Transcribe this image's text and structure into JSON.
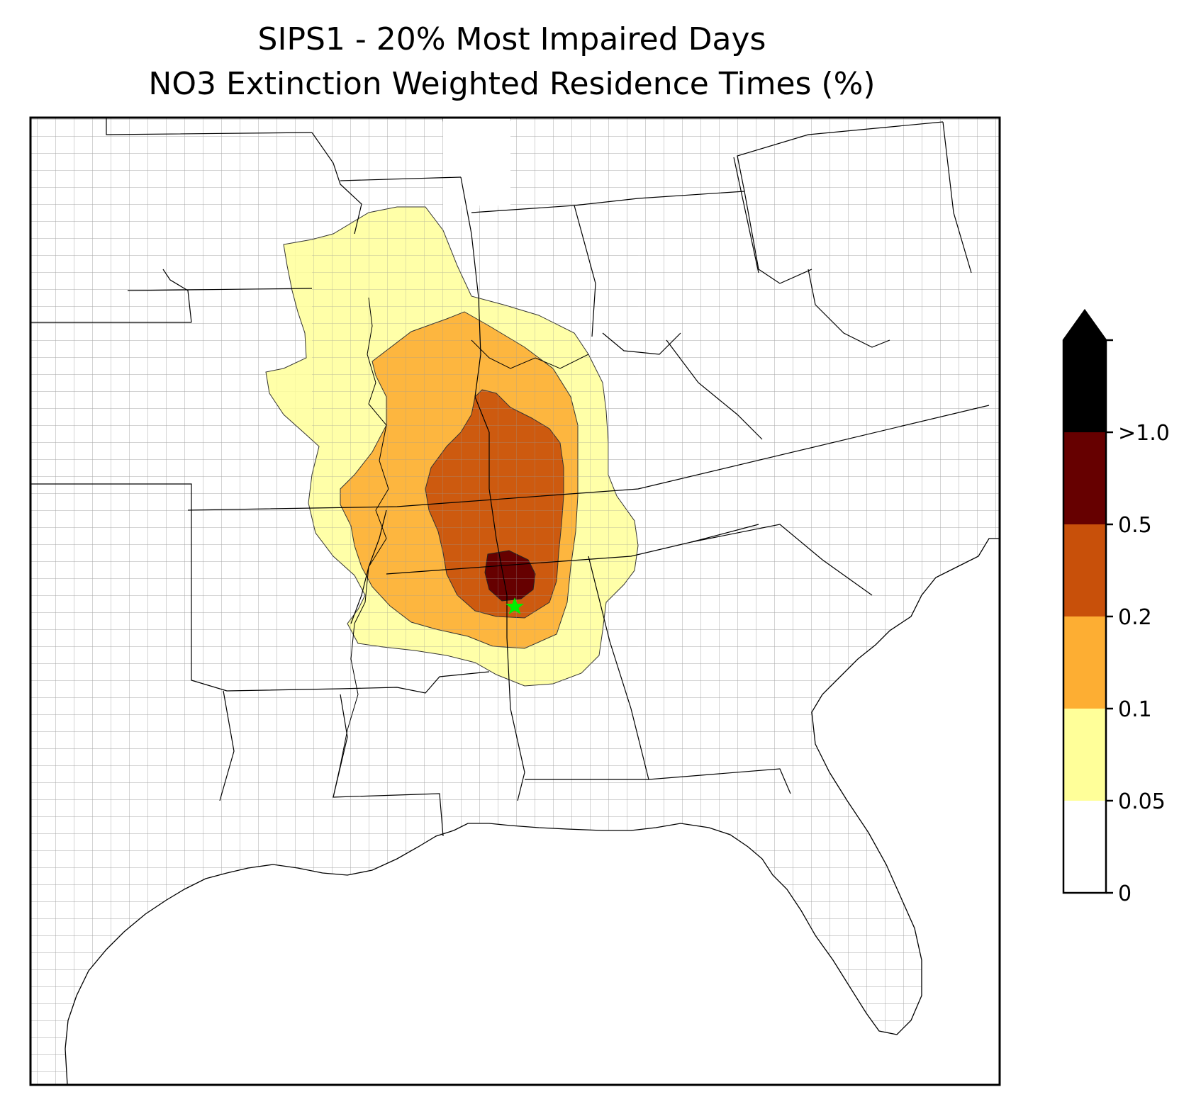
{
  "title": {
    "line1": "SIPS1 - 20% Most Impaired Days",
    "line2": "NO3 Extinction Weighted Residence Times (%)"
  },
  "map": {
    "site_marker": "green-star",
    "ocean_color": "#ffffff",
    "land_color": "#ffffff",
    "county_line_color": "#a0a0a0",
    "state_line_color": "#000000"
  },
  "legend": {
    "ticks": [
      "0",
      "0.05",
      "0.1",
      "0.2",
      "0.5",
      ">1.0"
    ],
    "bins": [
      {
        "range": "0 - 0.05",
        "color": "#ffffff"
      },
      {
        "range": "0.05 - 0.1",
        "color": "#ffff99"
      },
      {
        "range": "0.1 - 0.2",
        "color": "#fdae33"
      },
      {
        "range": "0.2 - 0.5",
        "color": "#c8500a"
      },
      {
        "range": "0.5 - 1.0",
        "color": "#660000"
      },
      {
        "range": ">1.0",
        "color": "#000000"
      }
    ],
    "extend": "max"
  }
}
